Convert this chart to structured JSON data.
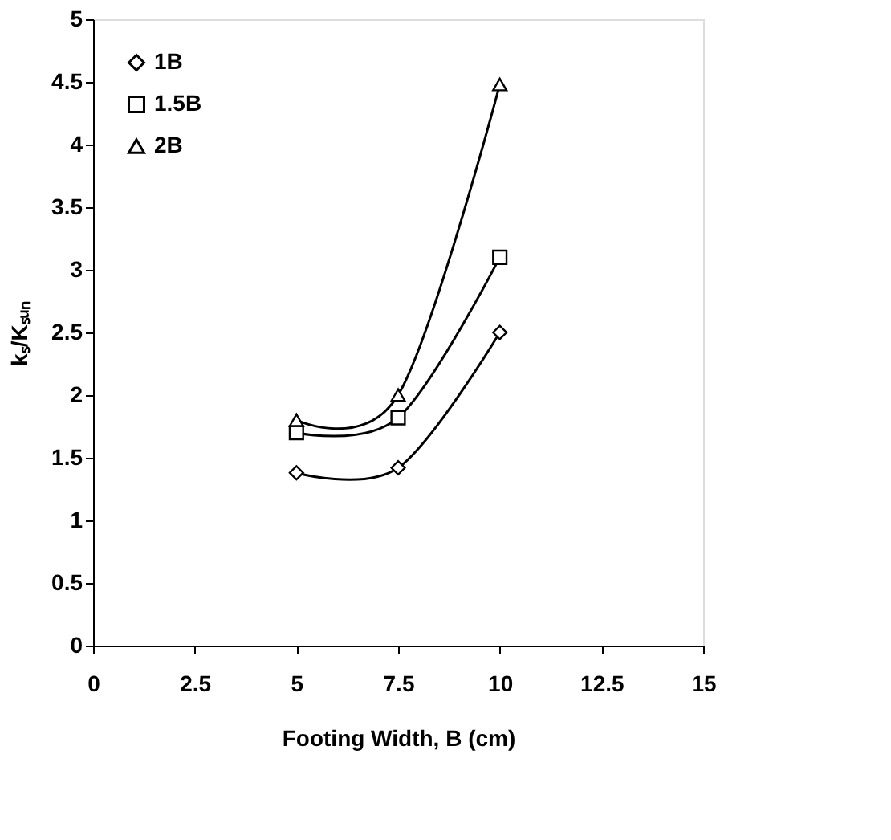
{
  "chart_data": {
    "type": "line",
    "xlabel": "Footing Width, B (cm)",
    "ylabel": "kₛ/Kₛᵤₙ",
    "x": [
      5,
      7.5,
      10
    ],
    "series": [
      {
        "name": "1B",
        "color": "#000000",
        "marker": "diamond",
        "values": [
          1.38,
          1.42,
          2.5
        ]
      },
      {
        "name": "1.5B",
        "color": "#000000",
        "marker": "square",
        "values": [
          1.7,
          1.82,
          3.1
        ]
      },
      {
        "name": "2B",
        "color": "#000000",
        "marker": "triangle",
        "values": [
          1.8,
          2.0,
          4.48
        ]
      }
    ],
    "xlim": [
      0,
      15
    ],
    "xticks": [
      0,
      2.5,
      5,
      7.5,
      10,
      12.5,
      15
    ],
    "ylim": [
      0,
      5
    ],
    "yticks": [
      0,
      0.5,
      1,
      1.5,
      2,
      2.5,
      3,
      3.5,
      4,
      4.5,
      5
    ],
    "grid": false,
    "legend": "top left",
    "line_style": "solid"
  }
}
